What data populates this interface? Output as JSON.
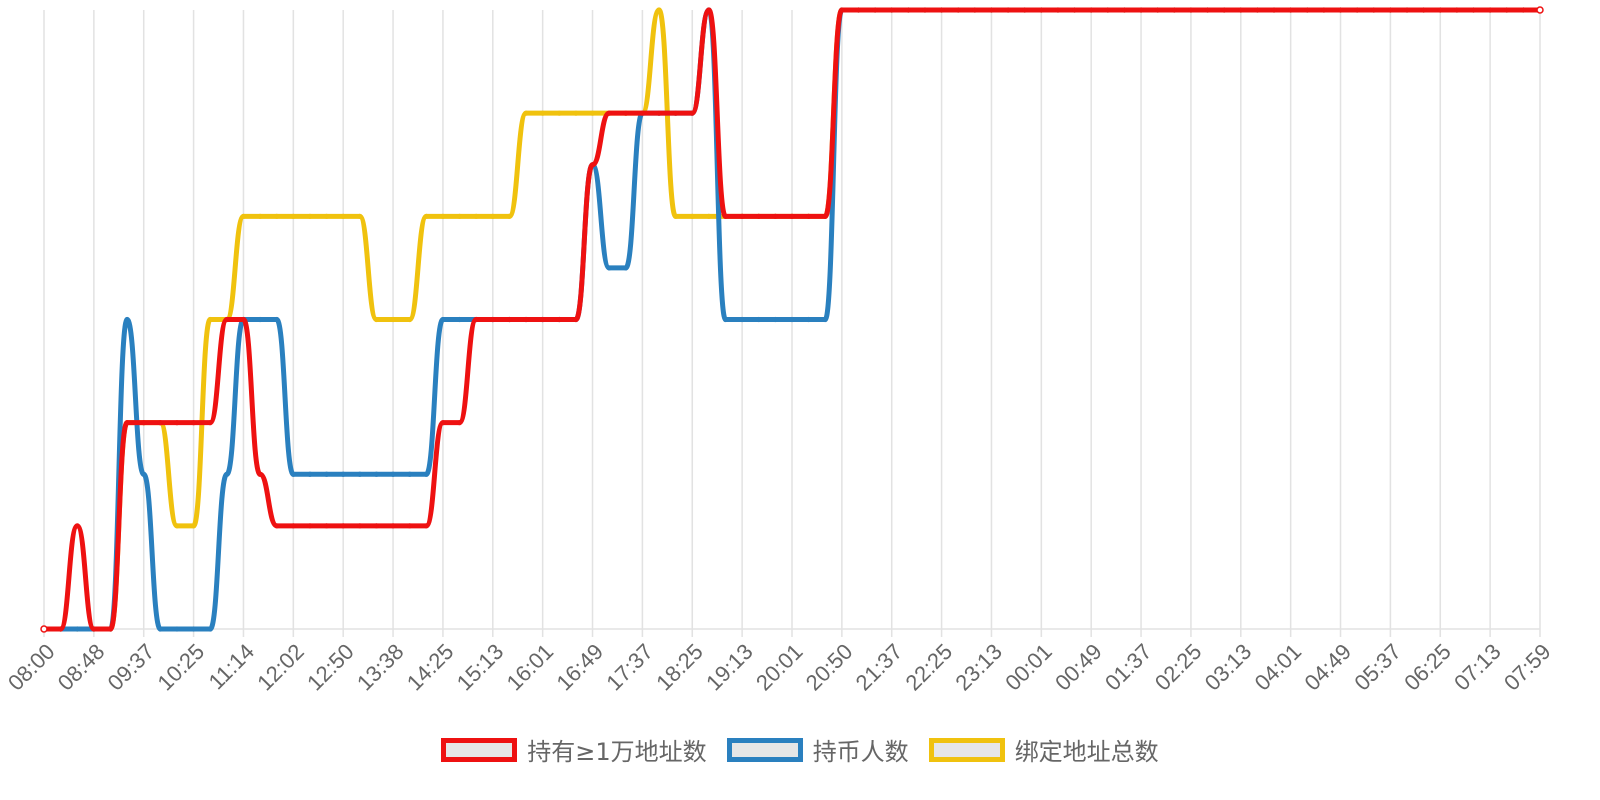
{
  "chart_data": {
    "type": "line",
    "x_labels": [
      "08:00",
      "08:48",
      "09:37",
      "10:25",
      "11:14",
      "12:02",
      "12:50",
      "13:38",
      "14:25",
      "15:13",
      "16:01",
      "16:49",
      "17:37",
      "18:25",
      "19:13",
      "20:01",
      "20:50",
      "21:37",
      "22:25",
      "23:13",
      "00:01",
      "00:49",
      "01:37",
      "02:25",
      "03:13",
      "04:01",
      "04:49",
      "05:37",
      "06:25",
      "07:13",
      "07:59"
    ],
    "grid": {
      "vertical": true,
      "horizontal": false
    },
    "legend_position": "bottom",
    "series": [
      {
        "name": "持有≥1万地址数",
        "color": "#ee1111",
        "points": [
          [
            0,
            0
          ],
          [
            1,
            0
          ],
          [
            2,
            2
          ],
          [
            3,
            0
          ],
          [
            4,
            0
          ],
          [
            5,
            4
          ],
          [
            6,
            4
          ],
          [
            7,
            4
          ],
          [
            8,
            4
          ],
          [
            9,
            4
          ],
          [
            10,
            4
          ],
          [
            11,
            6
          ],
          [
            12,
            6
          ],
          [
            13,
            3
          ],
          [
            14,
            2
          ],
          [
            15,
            2
          ],
          [
            16,
            2
          ],
          [
            17,
            2
          ],
          [
            18,
            2
          ],
          [
            19,
            2
          ],
          [
            20,
            2
          ],
          [
            21,
            2
          ],
          [
            22,
            2
          ],
          [
            23,
            2
          ],
          [
            24,
            4
          ],
          [
            25,
            4
          ],
          [
            26,
            6
          ],
          [
            27,
            6
          ],
          [
            28,
            6
          ],
          [
            29,
            6
          ],
          [
            30,
            6
          ],
          [
            31,
            6
          ],
          [
            32,
            6
          ],
          [
            33,
            6
          ],
          [
            34,
            6
          ],
          [
            35,
            6
          ],
          [
            36,
            8
          ],
          [
            37,
            8
          ],
          [
            38,
            8
          ],
          [
            39,
            8
          ],
          [
            40,
            8
          ],
          [
            41,
            8
          ],
          [
            42,
            8
          ],
          [
            43,
            8
          ],
          [
            44,
            8
          ],
          [
            45,
            8
          ],
          [
            46,
            8
          ],
          [
            47,
            8
          ]
        ]
      },
      {
        "name": "持币人数",
        "color": "#2a80bf",
        "points": [
          [
            0,
            0
          ],
          [
            1,
            0
          ],
          [
            2,
            0
          ],
          [
            3,
            0
          ],
          [
            4,
            0
          ],
          [
            5,
            6
          ],
          [
            6,
            3
          ],
          [
            7,
            0
          ],
          [
            8,
            0
          ],
          [
            9,
            0
          ],
          [
            10,
            0
          ],
          [
            11,
            3
          ],
          [
            12,
            6
          ],
          [
            13,
            6
          ],
          [
            14,
            6
          ],
          [
            15,
            3
          ],
          [
            16,
            3
          ],
          [
            17,
            3
          ],
          [
            18,
            3
          ],
          [
            19,
            3
          ],
          [
            20,
            3
          ],
          [
            21,
            3
          ],
          [
            22,
            3
          ],
          [
            23,
            3
          ],
          [
            24,
            6
          ],
          [
            25,
            6
          ],
          [
            26,
            6
          ],
          [
            27,
            6
          ],
          [
            28,
            6
          ],
          [
            29,
            6
          ],
          [
            30,
            6
          ],
          [
            31,
            6
          ],
          [
            32,
            6
          ],
          [
            33,
            6
          ],
          [
            34,
            6
          ],
          [
            35,
            6
          ],
          [
            36,
            6
          ],
          [
            37,
            6
          ],
          [
            38,
            6
          ],
          [
            39,
            6
          ],
          [
            40,
            6
          ],
          [
            41,
            6
          ],
          [
            42,
            6
          ],
          [
            43,
            6
          ],
          [
            44,
            6
          ],
          [
            45,
            6
          ],
          [
            46,
            6
          ],
          [
            47,
            6
          ]
        ]
      },
      {
        "name": "绑定地址总数",
        "color": "#f0c20e",
        "points": [
          [
            0,
            0
          ],
          [
            1,
            0
          ],
          [
            2,
            0
          ],
          [
            3,
            0
          ],
          [
            4,
            0
          ],
          [
            5,
            4
          ],
          [
            6,
            4
          ],
          [
            7,
            4
          ],
          [
            8,
            2
          ],
          [
            9,
            2
          ],
          [
            10,
            6
          ],
          [
            11,
            6
          ],
          [
            12,
            8
          ],
          [
            13,
            8
          ],
          [
            14,
            8
          ],
          [
            15,
            8
          ],
          [
            16,
            8
          ],
          [
            17,
            8
          ],
          [
            18,
            8
          ],
          [
            19,
            8
          ],
          [
            20,
            6
          ],
          [
            21,
            6
          ],
          [
            22,
            6
          ],
          [
            23,
            8
          ],
          [
            24,
            8
          ],
          [
            25,
            8
          ],
          [
            26,
            8
          ],
          [
            27,
            8
          ],
          [
            28,
            8
          ],
          [
            29,
            8
          ],
          [
            30,
            8
          ],
          [
            31,
            8
          ],
          [
            32,
            8
          ],
          [
            33,
            8
          ],
          [
            34,
            8
          ],
          [
            35,
            8
          ],
          [
            36,
            8
          ],
          [
            37,
            8
          ],
          [
            38,
            8
          ],
          [
            39,
            8
          ],
          [
            40,
            8
          ],
          [
            41,
            8
          ],
          [
            42,
            8
          ],
          [
            43,
            8
          ],
          [
            44,
            8
          ],
          [
            45,
            8
          ],
          [
            46,
            8
          ],
          [
            47,
            8
          ]
        ]
      }
    ],
    "y_range": [
      0,
      12
    ]
  },
  "extra_segments": {
    "red": [
      [
        33,
        9
      ],
      [
        34,
        10
      ],
      [
        35,
        10
      ],
      [
        36,
        10
      ],
      [
        37,
        10
      ],
      [
        38,
        10
      ],
      [
        39,
        10
      ],
      [
        40,
        12
      ]
    ],
    "blue": [
      [
        33,
        9
      ],
      [
        34,
        7
      ],
      [
        35,
        7
      ],
      [
        36,
        10
      ],
      [
        37,
        10
      ],
      [
        38,
        10
      ],
      [
        39,
        10
      ],
      [
        40,
        12
      ]
    ],
    "yellow": [
      [
        28,
        8
      ],
      [
        29,
        10
      ],
      [
        30,
        10
      ],
      [
        31,
        10
      ],
      [
        32,
        10
      ],
      [
        33,
        10
      ],
      [
        34,
        10
      ],
      [
        35,
        10
      ],
      [
        36,
        10
      ],
      [
        37,
        12
      ]
    ]
  }
}
